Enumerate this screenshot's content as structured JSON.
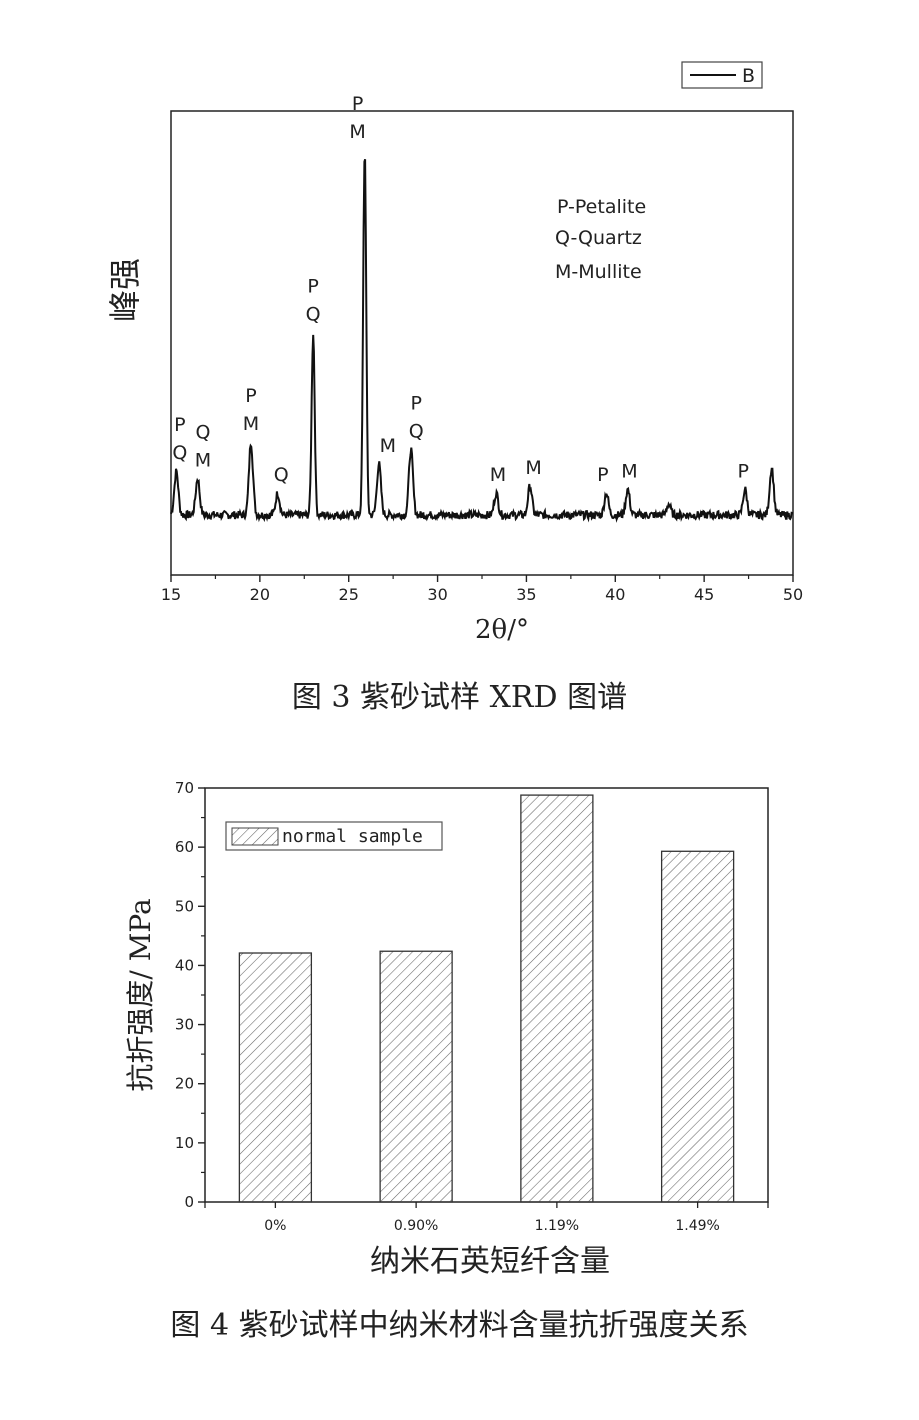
{
  "chart_data": [
    {
      "type": "line",
      "xlabel": "2θ/°",
      "ylabel": "峰强",
      "xlim": [
        15,
        50
      ],
      "xticks": [
        15,
        20,
        25,
        30,
        35,
        40,
        45,
        50
      ],
      "legend": {
        "entries": [
          "B"
        ],
        "position": "top-right"
      },
      "annotation_key": [
        "P-Petalite",
        "Q-Quartz",
        "M-Mullite"
      ],
      "grid": false,
      "peaks": [
        {
          "x": 15.3,
          "h": 0.12
        },
        {
          "x": 16.5,
          "h": 0.1
        },
        {
          "x": 19.5,
          "h": 0.2
        },
        {
          "x": 21.0,
          "h": 0.06
        },
        {
          "x": 23.0,
          "h": 0.5
        },
        {
          "x": 25.9,
          "h": 1.0
        },
        {
          "x": 26.7,
          "h": 0.14
        },
        {
          "x": 28.5,
          "h": 0.18
        },
        {
          "x": 33.3,
          "h": 0.06
        },
        {
          "x": 35.2,
          "h": 0.08
        },
        {
          "x": 39.5,
          "h": 0.06
        },
        {
          "x": 40.7,
          "h": 0.07
        },
        {
          "x": 43.0,
          "h": 0.03
        },
        {
          "x": 47.3,
          "h": 0.07
        },
        {
          "x": 48.8,
          "h": 0.13
        }
      ],
      "peak_labels": [
        {
          "x": 15.5,
          "lines": [
            "P",
            "Q"
          ]
        },
        {
          "x": 16.8,
          "lines": [
            "Q",
            "M"
          ]
        },
        {
          "x": 19.5,
          "lines": [
            "P",
            "M"
          ]
        },
        {
          "x": 21.2,
          "lines": [
            "Q"
          ]
        },
        {
          "x": 23.0,
          "lines": [
            "P",
            "Q"
          ]
        },
        {
          "x": 25.5,
          "lines": [
            "P",
            "M"
          ]
        },
        {
          "x": 27.2,
          "lines": [
            "M"
          ]
        },
        {
          "x": 28.8,
          "lines": [
            "P",
            "Q"
          ]
        },
        {
          "x": 33.4,
          "lines": [
            "M"
          ]
        },
        {
          "x": 35.4,
          "lines": [
            "M"
          ]
        },
        {
          "x": 39.3,
          "lines": [
            "P"
          ]
        },
        {
          "x": 40.8,
          "lines": [
            "M"
          ]
        },
        {
          "x": 47.2,
          "lines": [
            "P"
          ]
        }
      ],
      "caption": "图 3  紫砂试样 XRD 图谱"
    },
    {
      "type": "bar",
      "categories": [
        "0%",
        "0.90%",
        "1.19%",
        "1.49%"
      ],
      "values": [
        42.1,
        42.4,
        68.8,
        59.3
      ],
      "xlabel": "纳米石英短纤含量",
      "ylabel": "抗折强度/ MPa",
      "ylim": [
        0,
        70
      ],
      "yticks": [
        0,
        10,
        20,
        30,
        40,
        50,
        60,
        70
      ],
      "legend": {
        "entries": [
          "normal sample"
        ],
        "position": "top-left"
      },
      "grid": false,
      "caption": "图 4 紫砂试样中纳米材料含量抗折强度关系"
    }
  ]
}
